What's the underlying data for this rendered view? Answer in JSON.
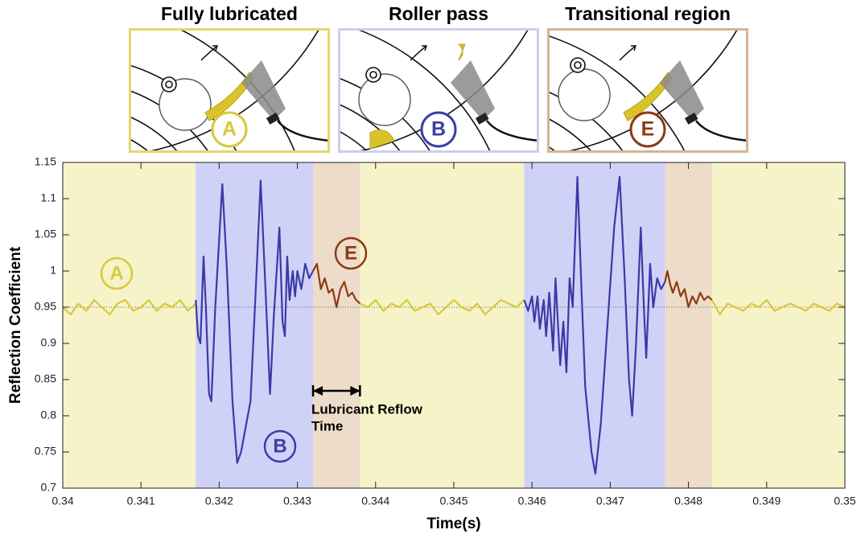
{
  "panels": [
    {
      "title": "Fully lubricated",
      "letter": "A",
      "color": "#e3d66e",
      "letter_color": "#d9c83c"
    },
    {
      "title": "Roller pass",
      "letter": "B",
      "color": "#c9d0ec",
      "letter_color": "#3b3fa6"
    },
    {
      "title": "Transitional region",
      "letter": "E",
      "color": "#d5b491",
      "letter_color": "#8b3a14"
    }
  ],
  "chart_data": {
    "type": "line",
    "xlabel": "Time(s)",
    "ylabel": "Reflection Coefficient",
    "xlim": [
      0.34,
      0.35
    ],
    "ylim": [
      0.7,
      1.15
    ],
    "xticks": [
      0.34,
      0.341,
      0.342,
      0.343,
      0.344,
      0.345,
      0.346,
      0.347,
      0.348,
      0.349,
      0.35
    ],
    "yticks": [
      0.7,
      0.75,
      0.8,
      0.85,
      0.9,
      0.95,
      1,
      1.05,
      1.1,
      1.15
    ],
    "background": "#f6f3c9",
    "reference_line": 0.95,
    "regions": [
      {
        "x": [
          0.3417,
          0.3432
        ],
        "color": "#d0d1f6"
      },
      {
        "x": [
          0.3432,
          0.3438
        ],
        "color": "#eddcc9"
      },
      {
        "x": [
          0.3459,
          0.3477
        ],
        "color": "#d0d1f6"
      },
      {
        "x": [
          0.3477,
          0.3483
        ],
        "color": "#eddcc9"
      }
    ],
    "annotations": [
      {
        "text": "A",
        "color": "#d9c83c"
      },
      {
        "text": "B",
        "color": "#3b3fa6"
      },
      {
        "text": "E",
        "color": "#8b3a14"
      }
    ],
    "reflow_label": [
      "Lubricant Reflow",
      "Time"
    ],
    "series": [
      {
        "color": "#d8c83a",
        "x": [
          0.34,
          0.3401,
          0.3402,
          0.3403,
          0.3404,
          0.3405,
          0.3406,
          0.3407,
          0.3408,
          0.3409,
          0.341,
          0.3411,
          0.3412,
          0.3413,
          0.3414,
          0.3415,
          0.3416,
          0.3417
        ],
        "values": [
          0.95,
          0.94,
          0.955,
          0.945,
          0.96,
          0.95,
          0.94,
          0.955,
          0.96,
          0.945,
          0.95,
          0.96,
          0.945,
          0.955,
          0.95,
          0.96,
          0.945,
          0.955
        ]
      },
      {
        "color": "#3a3aa8",
        "x": [
          0.3417,
          0.34173,
          0.34176,
          0.3418,
          0.34183,
          0.34187,
          0.3419,
          0.34195,
          0.34204,
          0.3421,
          0.34217,
          0.34223,
          0.34228,
          0.3424,
          0.34247,
          0.34253,
          0.34259,
          0.34265,
          0.3427,
          0.34277,
          0.34281,
          0.34284,
          0.34287,
          0.3429,
          0.34294,
          0.34297,
          0.343,
          0.34305,
          0.3431,
          0.34315,
          0.3432
        ],
        "values": [
          0.96,
          0.91,
          0.9,
          1.02,
          0.95,
          0.83,
          0.82,
          0.95,
          1.12,
          1,
          0.82,
          0.735,
          0.75,
          0.82,
          0.98,
          1.125,
          0.98,
          0.83,
          0.94,
          1.06,
          0.93,
          0.91,
          1.02,
          0.96,
          1,
          0.965,
          1,
          0.975,
          1.01,
          0.99,
          1
        ]
      },
      {
        "color": "#8b3a14",
        "x": [
          0.3432,
          0.34325,
          0.3433,
          0.34335,
          0.3434,
          0.34345,
          0.3435,
          0.34355,
          0.3436,
          0.34365,
          0.3437,
          0.34375,
          0.3438
        ],
        "values": [
          1,
          1.01,
          0.975,
          0.99,
          0.97,
          0.975,
          0.95,
          0.975,
          0.985,
          0.965,
          0.97,
          0.96,
          0.955
        ]
      },
      {
        "color": "#d8c83a",
        "x": [
          0.3438,
          0.3439,
          0.344,
          0.3441,
          0.3442,
          0.3443,
          0.3444,
          0.3445,
          0.3446,
          0.3447,
          0.3448,
          0.3449,
          0.345,
          0.3451,
          0.3452,
          0.3453,
          0.3454,
          0.3455,
          0.3456,
          0.3457,
          0.3458,
          0.3459
        ],
        "values": [
          0.955,
          0.95,
          0.96,
          0.945,
          0.955,
          0.95,
          0.96,
          0.945,
          0.95,
          0.955,
          0.94,
          0.95,
          0.96,
          0.95,
          0.945,
          0.955,
          0.94,
          0.95,
          0.96,
          0.955,
          0.95,
          0.96
        ]
      },
      {
        "color": "#3a3aa8",
        "x": [
          0.3459,
          0.34595,
          0.346,
          0.34603,
          0.34607,
          0.3461,
          0.34615,
          0.34618,
          0.34622,
          0.34627,
          0.3463,
          0.34636,
          0.3464,
          0.34644,
          0.34648,
          0.34652,
          0.34658,
          0.34663,
          0.34668,
          0.34676,
          0.34681,
          0.34688,
          0.34698,
          0.34705,
          0.34712,
          0.34718,
          0.34724,
          0.34728,
          0.34733,
          0.34739,
          0.34743,
          0.34746,
          0.34751,
          0.34755,
          0.3476,
          0.34765,
          0.3477
        ],
        "values": [
          0.96,
          0.945,
          0.965,
          0.93,
          0.965,
          0.92,
          0.96,
          0.91,
          0.97,
          0.89,
          0.99,
          0.87,
          0.93,
          0.86,
          0.99,
          0.95,
          1.13,
          0.98,
          0.84,
          0.75,
          0.72,
          0.79,
          0.95,
          1.06,
          1.13,
          1,
          0.85,
          0.8,
          0.9,
          1.06,
          0.95,
          0.88,
          1.01,
          0.95,
          0.99,
          0.975,
          0.985
        ]
      },
      {
        "color": "#8b3a14",
        "x": [
          0.3477,
          0.34773,
          0.34777,
          0.3478,
          0.34785,
          0.3479,
          0.34795,
          0.348,
          0.34805,
          0.3481,
          0.34815,
          0.3482,
          0.34825,
          0.3483
        ],
        "values": [
          0.985,
          1,
          0.98,
          0.97,
          0.985,
          0.965,
          0.975,
          0.95,
          0.965,
          0.955,
          0.97,
          0.96,
          0.965,
          0.96
        ]
      },
      {
        "color": "#d8c83a",
        "x": [
          0.3483,
          0.3484,
          0.3485,
          0.3486,
          0.3487,
          0.3488,
          0.3489,
          0.349,
          0.3491,
          0.3492,
          0.3493,
          0.3494,
          0.3495,
          0.3496,
          0.3497,
          0.3498,
          0.3499,
          0.35
        ],
        "values": [
          0.96,
          0.94,
          0.955,
          0.95,
          0.945,
          0.955,
          0.95,
          0.96,
          0.945,
          0.95,
          0.955,
          0.95,
          0.945,
          0.955,
          0.95,
          0.945,
          0.955,
          0.95
        ]
      }
    ]
  }
}
